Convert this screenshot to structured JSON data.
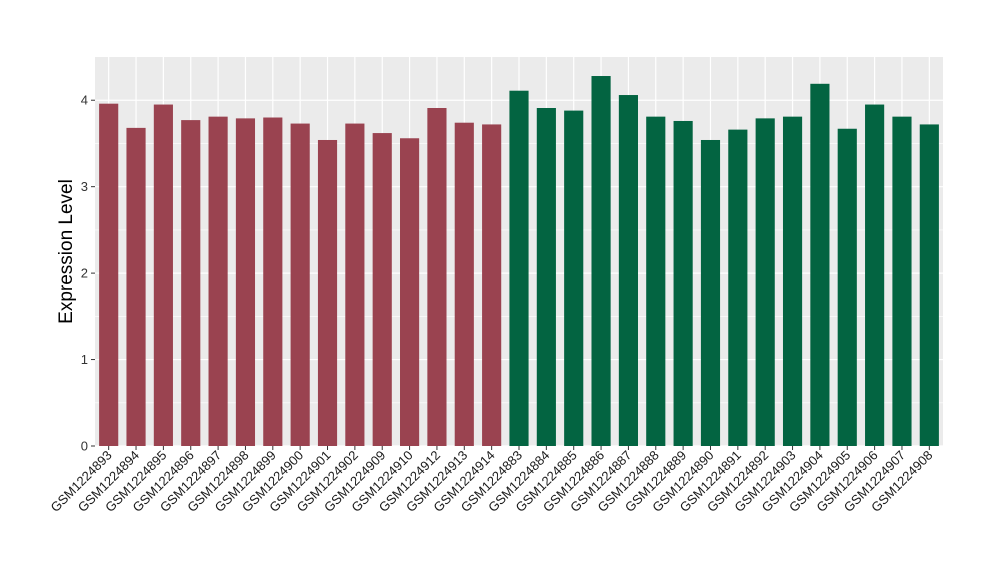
{
  "chart_data": {
    "type": "bar",
    "title": "",
    "xlabel": "",
    "ylabel": "Expression Level",
    "ylim": [
      0,
      4.5
    ],
    "yticks": [
      0,
      1,
      2,
      3,
      4
    ],
    "grid": true,
    "legend": "none",
    "categories": [
      "GSM1224893",
      "GSM1224894",
      "GSM1224895",
      "GSM1224896",
      "GSM1224897",
      "GSM1224898",
      "GSM1224899",
      "GSM1224900",
      "GSM1224901",
      "GSM1224902",
      "GSM1224909",
      "GSM1224910",
      "GSM1224912",
      "GSM1224913",
      "GSM1224914",
      "GSM1224883",
      "GSM1224884",
      "GSM1224885",
      "GSM1224886",
      "GSM1224887",
      "GSM1224888",
      "GSM1224889",
      "GSM1224890",
      "GSM1224891",
      "GSM1224892",
      "GSM1224903",
      "GSM1224904",
      "GSM1224905",
      "GSM1224906",
      "GSM1224907",
      "GSM1224908"
    ],
    "values": [
      3.96,
      3.68,
      3.95,
      3.77,
      3.81,
      3.79,
      3.8,
      3.73,
      3.54,
      3.73,
      3.62,
      3.56,
      3.91,
      3.74,
      3.72,
      4.11,
      3.91,
      3.88,
      4.28,
      4.06,
      3.81,
      3.76,
      3.54,
      3.66,
      3.79,
      3.81,
      4.19,
      3.67,
      3.95,
      3.81,
      3.72
    ],
    "group": [
      0,
      0,
      0,
      0,
      0,
      0,
      0,
      0,
      0,
      0,
      0,
      0,
      0,
      0,
      0,
      1,
      1,
      1,
      1,
      1,
      1,
      1,
      1,
      1,
      1,
      1,
      1,
      1,
      1,
      1,
      1
    ],
    "colors": {
      "group0": "#9a4350",
      "group1": "#036441",
      "panel_background": "#ebebeb",
      "grid": "#ffffff"
    }
  }
}
